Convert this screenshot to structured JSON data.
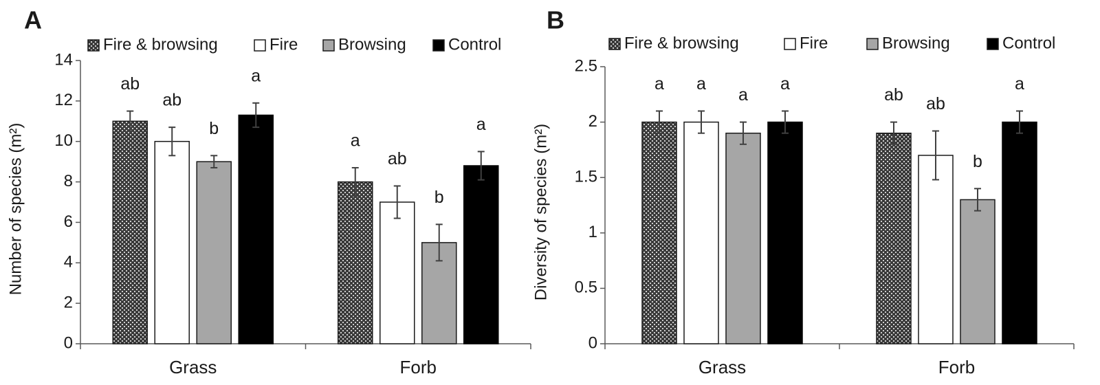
{
  "colors": {
    "fire_browsing_fill": "pattern-crosshatch",
    "fire_browsing_base": "#3a3a3a",
    "fire": "#ffffff",
    "browsing": "#a6a6a6",
    "control": "#000000",
    "axis": "#595959",
    "error_bar": "#404040"
  },
  "chart_data": [
    {
      "panel": "A",
      "type": "bar",
      "ylabel": "Number of species (m²)",
      "ylim": [
        0,
        14
      ],
      "yticks": [
        0,
        2,
        4,
        6,
        8,
        10,
        12,
        14
      ],
      "categories": [
        "Grass",
        "Forb"
      ],
      "legend_placement": "top",
      "series": [
        {
          "name": "Fire & browsing",
          "values": [
            11.0,
            8.0
          ],
          "errors": [
            0.5,
            0.7
          ],
          "letters": [
            "ab",
            "a"
          ]
        },
        {
          "name": "Fire",
          "values": [
            10.0,
            7.0
          ],
          "errors": [
            0.7,
            0.8
          ],
          "letters": [
            "ab",
            "ab"
          ]
        },
        {
          "name": "Browsing",
          "values": [
            9.0,
            5.0
          ],
          "errors": [
            0.3,
            0.9
          ],
          "letters": [
            "b",
            "b"
          ]
        },
        {
          "name": "Control",
          "values": [
            11.3,
            8.8
          ],
          "errors": [
            0.6,
            0.7
          ],
          "letters": [
            "a",
            "a"
          ]
        }
      ]
    },
    {
      "panel": "B",
      "type": "bar",
      "ylabel": "Diversity of species (m²)",
      "ylim": [
        0,
        2.5
      ],
      "yticks": [
        0,
        0.5,
        1,
        1.5,
        2,
        2.5
      ],
      "categories": [
        "Grass",
        "Forb"
      ],
      "legend_placement": "top",
      "series": [
        {
          "name": "Fire & browsing",
          "values": [
            2.0,
            1.9
          ],
          "errors": [
            0.1,
            0.1
          ],
          "letters": [
            "a",
            "ab"
          ]
        },
        {
          "name": "Fire",
          "values": [
            2.0,
            1.7
          ],
          "errors": [
            0.1,
            0.22
          ],
          "letters": [
            "a",
            "ab"
          ]
        },
        {
          "name": "Browsing",
          "values": [
            1.9,
            1.3
          ],
          "errors": [
            0.1,
            0.1
          ],
          "letters": [
            "a",
            "b"
          ]
        },
        {
          "name": "Control",
          "values": [
            2.0,
            2.0
          ],
          "errors": [
            0.1,
            0.1
          ],
          "letters": [
            "a",
            "a"
          ]
        }
      ]
    }
  ]
}
